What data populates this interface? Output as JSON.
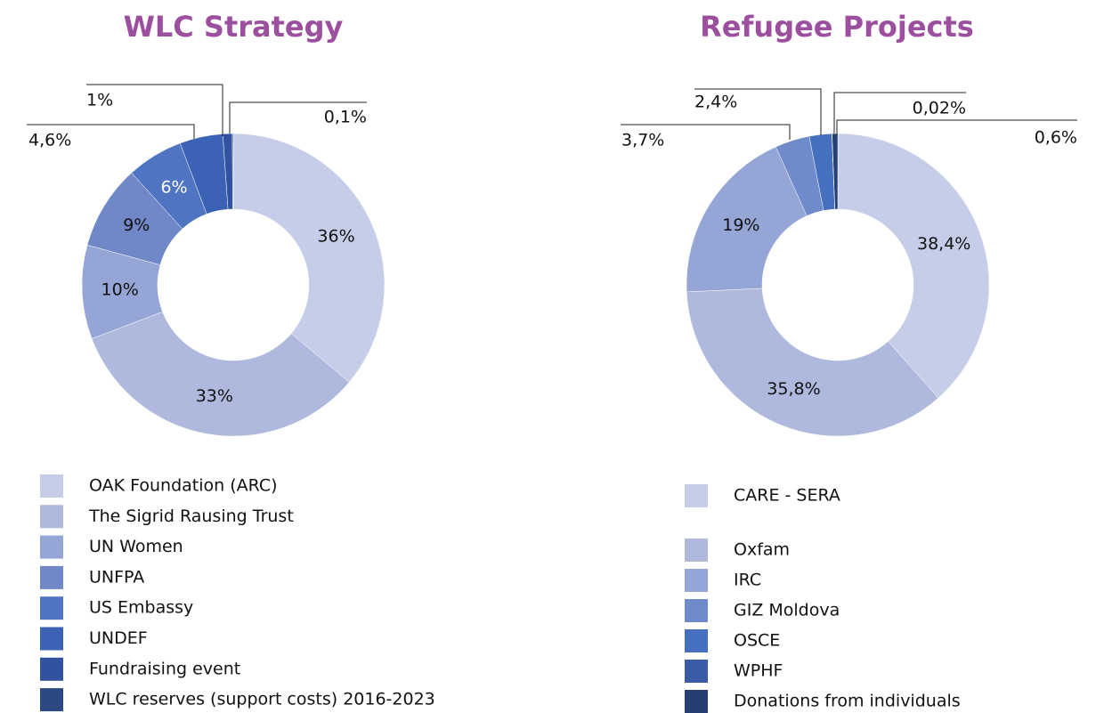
{
  "chart_data": [
    {
      "type": "pie",
      "title": "WLC Strategy",
      "categories": [
        "OAK Foundation (ARC)",
        "The Sigrid Rausing Trust",
        "UN Women",
        "UNFPA",
        "US Embassy",
        "UNDEF",
        "Fundraising event",
        "WLC reserves (support costs) 2016-2023"
      ],
      "values": [
        36,
        33,
        10,
        9,
        6,
        4.6,
        1,
        0.1
      ],
      "value_labels": [
        "36%",
        "33%",
        "10%",
        "9%",
        "6%",
        "4,6%",
        "1%",
        "0,1%"
      ],
      "colors": [
        "#c6cde8",
        "#aeb9dd",
        "#95a5d6",
        "#7088c7",
        "#4f74c2",
        "#3b62b5",
        "#31529e",
        "#2b4a83"
      ]
    },
    {
      "type": "pie",
      "title": "Refugee Projects",
      "categories": [
        "CARE - SERA",
        "Oxfam",
        "IRC",
        "GIZ Moldova",
        "OSCE",
        "WPHF",
        "Donations from individuals"
      ],
      "values": [
        38.4,
        35.8,
        19,
        3.7,
        2.4,
        0.02,
        0.6
      ],
      "value_labels": [
        "38,4%",
        "35,8%",
        "19%",
        "3,7%",
        "2,4%",
        "0,02%",
        "0,6%"
      ],
      "colors": [
        "#c6cde8",
        "#aeb9dd",
        "#95a5d6",
        "#6f8bcb",
        "#4570bd",
        "#3a5ba6",
        "#253f73"
      ]
    }
  ]
}
